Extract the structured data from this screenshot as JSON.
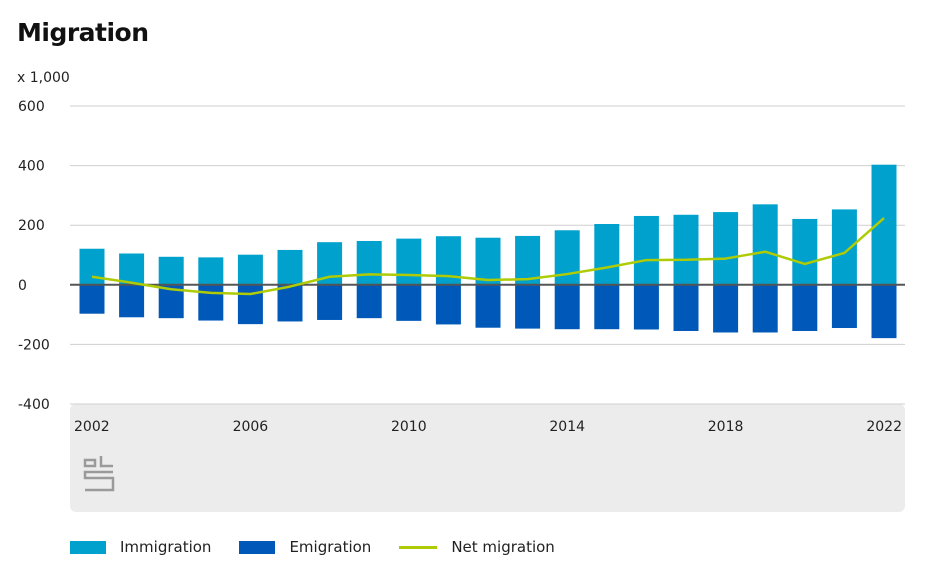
{
  "title": "Migration",
  "unit_label": "x 1,000",
  "colors": {
    "immigration": "#00a1cd",
    "emigration": "#0058b8",
    "net": "#afcb05",
    "footer": "#ececec",
    "grid": "#cfcfcf",
    "zero": "#555555"
  },
  "logo": {
    "icon": "cbs-logo-icon",
    "text": "cbs"
  },
  "legend": [
    {
      "label": "Immigration",
      "kind": "box",
      "color": "#00a1cd"
    },
    {
      "label": "Emigration",
      "kind": "box",
      "color": "#0058b8"
    },
    {
      "label": "Net migration",
      "kind": "line",
      "color": "#afcb05"
    }
  ],
  "chart_data": {
    "type": "bar",
    "title": "Migration",
    "ylabel": "x 1,000",
    "ylim": [
      -400,
      600
    ],
    "yticks": [
      "600",
      "400",
      "200",
      "0",
      "-200",
      "-400"
    ],
    "ytick_values": [
      600,
      400,
      200,
      0,
      -200,
      -400
    ],
    "xtick_labels": [
      "2002",
      "2006",
      "2010",
      "2014",
      "2018",
      "2022"
    ],
    "categories": [
      2002,
      2003,
      2004,
      2005,
      2006,
      2007,
      2008,
      2009,
      2010,
      2011,
      2012,
      2013,
      2014,
      2015,
      2016,
      2017,
      2018,
      2019,
      2020,
      2021,
      2022
    ],
    "grid": true,
    "legend_position": "bottom",
    "series": [
      {
        "name": "Immigration",
        "type": "bar",
        "values": [
          121,
          105,
          94,
          92,
          101,
          117,
          143,
          147,
          155,
          163,
          158,
          164,
          183,
          204,
          231,
          235,
          244,
          270,
          221,
          253,
          403
        ]
      },
      {
        "name": "Emigration",
        "type": "bar",
        "values": [
          -97,
          -109,
          -112,
          -120,
          -132,
          -123,
          -118,
          -112,
          -121,
          -133,
          -144,
          -147,
          -149,
          -149,
          -150,
          -155,
          -160,
          -160,
          -155,
          -145,
          -179
        ]
      },
      {
        "name": "Net migration",
        "type": "line",
        "values": [
          27,
          7,
          -15,
          -27,
          -31,
          -6,
          27,
          35,
          33,
          29,
          16,
          19,
          36,
          58,
          83,
          84,
          88,
          111,
          70,
          107,
          224
        ]
      }
    ]
  }
}
